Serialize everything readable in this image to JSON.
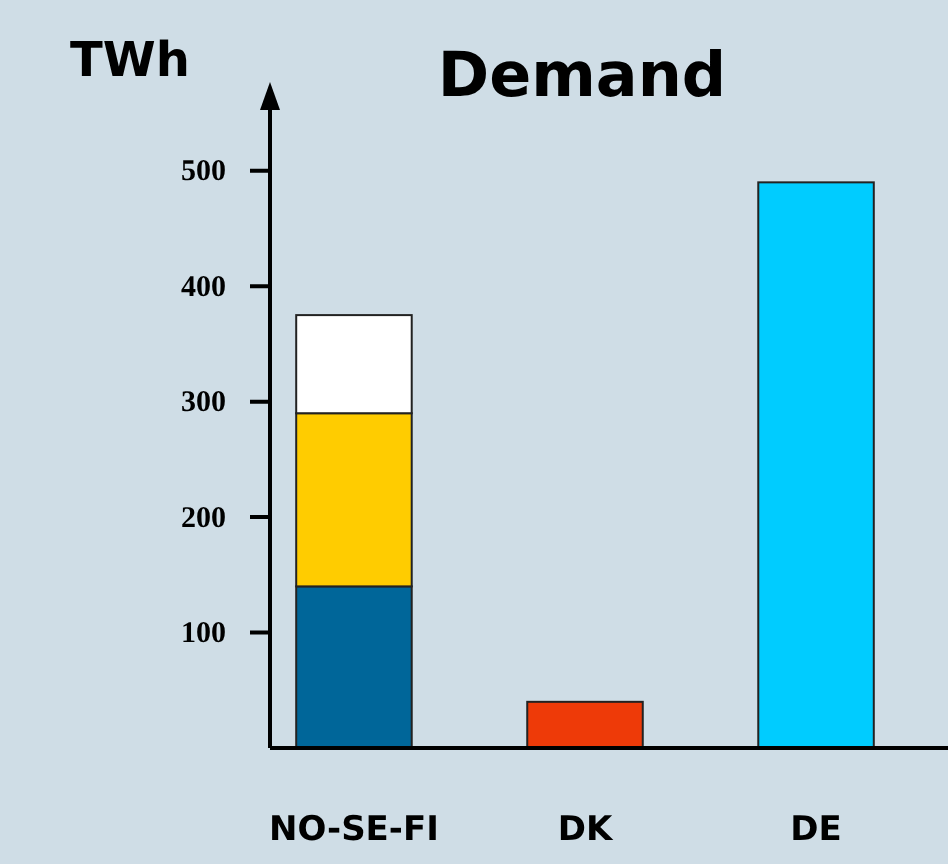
{
  "chart_data": {
    "type": "bar",
    "title": "Demand",
    "ylabel": "TWh",
    "categories": [
      "NO-SE-FI",
      "DK",
      "DE"
    ],
    "stacked": true,
    "series": [
      {
        "colors": [
          "#006699",
          "#ee3a08",
          "#00ccff"
        ],
        "values": [
          140,
          40,
          490
        ]
      },
      {
        "color": "#ffcc00",
        "values": [
          150,
          null,
          null
        ]
      },
      {
        "color": "#ffffff",
        "values": [
          85,
          null,
          null
        ]
      }
    ],
    "ylim": [
      0,
      570
    ],
    "yticks": [
      100,
      200,
      300,
      400,
      500
    ],
    "grid": false
  }
}
